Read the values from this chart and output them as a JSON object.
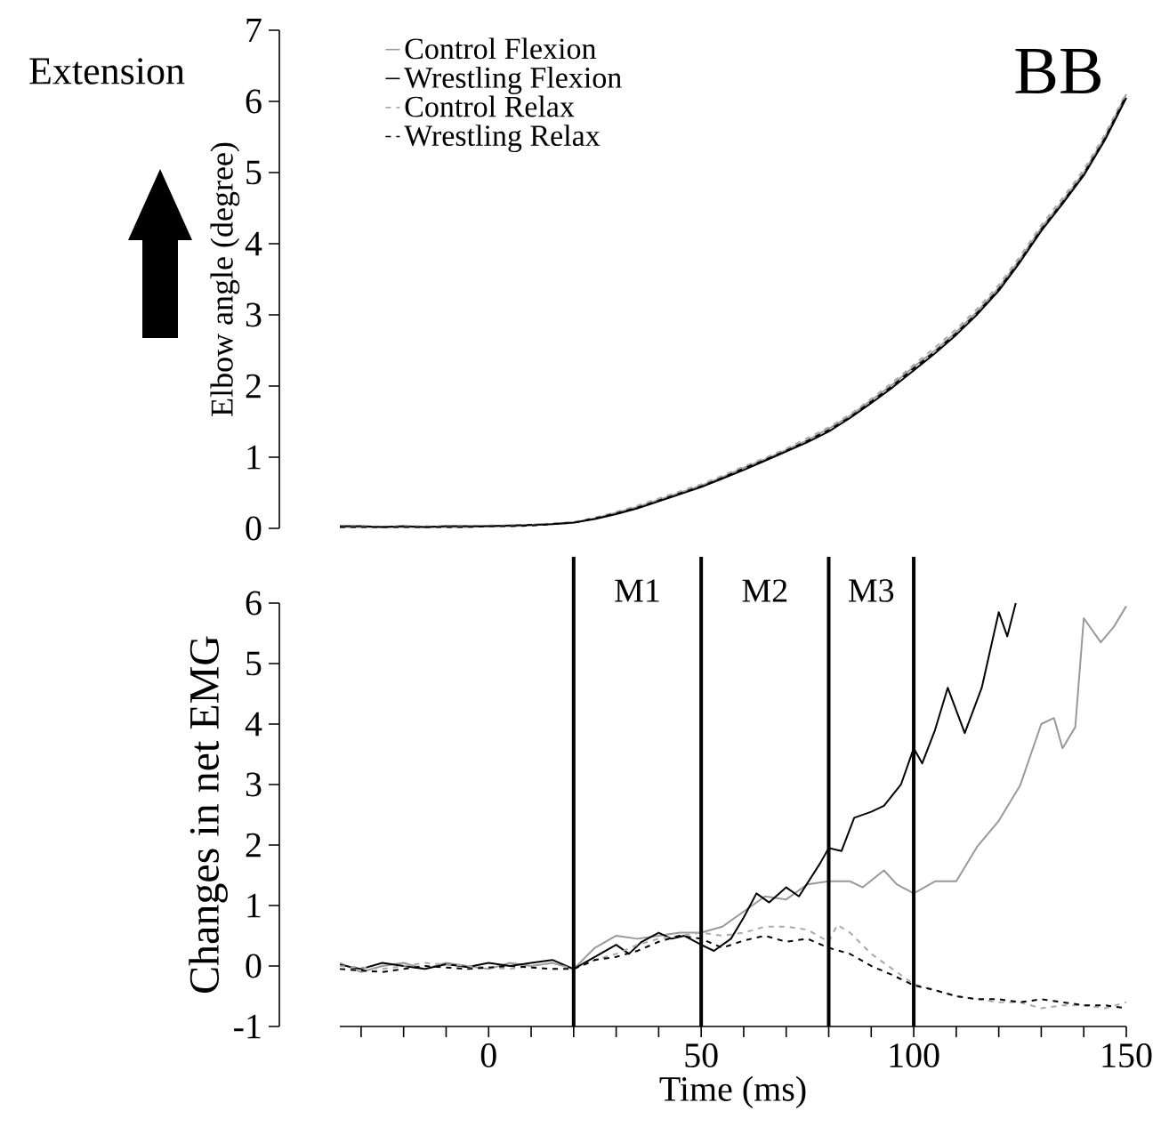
{
  "chart_data": [
    {
      "type": "line",
      "ylabel": "Elbow angle (degree)",
      "annotations": [
        "Extension",
        "BB"
      ],
      "categories": [
        null,
        null,
        null,
        null,
        null,
        null,
        null,
        null,
        null,
        null,
        null,
        null,
        null,
        null,
        null,
        null,
        null,
        null,
        null,
        null,
        null,
        null,
        null,
        null,
        null,
        null,
        null,
        null,
        null,
        null,
        null,
        null,
        null,
        null,
        null,
        null,
        null,
        null
      ],
      "ylim": [
        0,
        7
      ],
      "yticks": [
        0,
        1,
        2,
        3,
        4,
        5,
        6,
        7
      ],
      "tick_labels": "y",
      "legend": "top left",
      "series": [
        {
          "name": "Control Flexion",
          "color": "#999999",
          "line_style": "solid",
          "values": [
            0.02,
            0.02,
            0.02,
            0.02,
            0.02,
            0.02,
            0.02,
            0.03,
            0.03,
            0.04,
            0.06,
            0.08,
            0.14,
            0.22,
            0.3,
            0.4,
            0.5,
            0.6,
            0.72,
            0.85,
            0.97,
            1.1,
            1.24,
            1.4,
            1.58,
            1.8,
            2.02,
            2.27,
            2.5,
            2.76,
            3.05,
            3.38,
            3.78,
            4.22,
            4.6,
            5.0,
            5.5,
            6.1
          ]
        },
        {
          "name": "Wrestling Flexion",
          "color": "#000000",
          "line_style": "solid",
          "values": [
            0.03,
            0.03,
            0.02,
            0.03,
            0.02,
            0.03,
            0.03,
            0.03,
            0.04,
            0.05,
            0.06,
            0.08,
            0.13,
            0.2,
            0.28,
            0.38,
            0.48,
            0.58,
            0.7,
            0.82,
            0.95,
            1.08,
            1.21,
            1.36,
            1.55,
            1.76,
            1.98,
            2.22,
            2.46,
            2.72,
            3.01,
            3.34,
            3.74,
            4.18,
            4.56,
            4.96,
            5.46,
            6.05
          ]
        },
        {
          "name": "Control Relax",
          "color": "#aaaaaa",
          "line_style": "dashed",
          "values": [
            0.02,
            0.03,
            0.02,
            0.03,
            0.03,
            0.02,
            0.03,
            0.04,
            0.04,
            0.05,
            0.07,
            0.09,
            0.15,
            0.23,
            0.32,
            0.42,
            0.52,
            0.62,
            0.74,
            0.87,
            0.99,
            1.12,
            1.27,
            1.42,
            1.6,
            1.82,
            2.05,
            2.3,
            2.54,
            2.8,
            3.09,
            3.42,
            3.82,
            4.26,
            4.64,
            5.04,
            5.54,
            6.12
          ]
        },
        {
          "name": "Wrestling Relax",
          "color": "#000000",
          "line_style": "dashed",
          "values": [
            0.02,
            0.02,
            0.02,
            0.02,
            0.02,
            0.02,
            0.02,
            0.03,
            0.03,
            0.04,
            0.06,
            0.08,
            0.14,
            0.21,
            0.29,
            0.39,
            0.49,
            0.59,
            0.71,
            0.84,
            0.96,
            1.09,
            1.23,
            1.38,
            1.56,
            1.78,
            2.0,
            2.25,
            2.48,
            2.74,
            3.03,
            3.36,
            3.76,
            4.2,
            4.58,
            4.98,
            5.48,
            6.08
          ]
        }
      ]
    },
    {
      "type": "line",
      "xlabel": "Time (ms)",
      "ylabel": "Changes in net EMG",
      "xlim": [
        -35,
        150
      ],
      "ylim": [
        -1,
        6
      ],
      "yticks": [
        -1,
        0,
        1,
        2,
        3,
        4,
        5,
        6
      ],
      "xticks": [
        {
          "value": -30,
          "label": null
        },
        {
          "value": -20,
          "label": null
        },
        {
          "value": -10,
          "label": null
        },
        0,
        {
          "value": 10,
          "label": null
        },
        {
          "value": 20,
          "label": null
        },
        {
          "value": 30,
          "label": null
        },
        {
          "value": 40,
          "label": null
        },
        50,
        {
          "value": 60,
          "label": null
        },
        {
          "value": 70,
          "label": null
        },
        {
          "value": 80,
          "label": null
        },
        {
          "value": 90,
          "label": null
        },
        100,
        {
          "value": 110,
          "label": null
        },
        {
          "value": 120,
          "label": null
        },
        {
          "value": 130,
          "label": null
        },
        {
          "value": 140,
          "label": null
        },
        150
      ],
      "ref_lines": [
        {
          "axis": "x",
          "value": 20,
          "color": "#000000"
        },
        {
          "axis": "x",
          "value": 50,
          "color": "#000000"
        },
        {
          "axis": "x",
          "value": 80,
          "color": "#000000"
        },
        {
          "axis": "x",
          "value": 100,
          "color": "#000000"
        }
      ],
      "annotations": [
        "M1",
        "M2",
        "M3"
      ],
      "series": [
        {
          "color": "#999999",
          "line_style": "solid",
          "x": [
            -35,
            -30,
            -25,
            -20,
            -15,
            -10,
            -5,
            0,
            5,
            10,
            15,
            20,
            25,
            30,
            35,
            40,
            45,
            50,
            55,
            60,
            65,
            70,
            75,
            80,
            85,
            88,
            93,
            96,
            100,
            105,
            110,
            115,
            120,
            125,
            130,
            133,
            135,
            138,
            140,
            144,
            147,
            150
          ],
          "values": [
            0.05,
            -0.1,
            0.0,
            0.05,
            -0.05,
            0.05,
            0.0,
            -0.05,
            0.05,
            0.0,
            0.05,
            -0.05,
            0.3,
            0.5,
            0.45,
            0.5,
            0.55,
            0.55,
            0.65,
            0.9,
            1.15,
            1.1,
            1.35,
            1.4,
            1.4,
            1.3,
            1.58,
            1.35,
            1.2,
            1.4,
            1.4,
            1.98,
            2.4,
            2.98,
            4.0,
            4.1,
            3.6,
            3.95,
            5.75,
            5.35,
            5.6,
            5.95
          ]
        },
        {
          "color": "#000000",
          "line_style": "solid",
          "x": [
            -35,
            -30,
            -25,
            -20,
            -15,
            -10,
            -5,
            0,
            5,
            10,
            15,
            20,
            25,
            30,
            33,
            36,
            40,
            43,
            46,
            50,
            53,
            57,
            60,
            63,
            66,
            70,
            73,
            78,
            80,
            83,
            86,
            90,
            93,
            97,
            100,
            102,
            105,
            108,
            112,
            116,
            120,
            122,
            124
          ],
          "values": [
            0.02,
            -0.05,
            0.05,
            0.0,
            -0.05,
            0.03,
            -0.02,
            0.05,
            0.0,
            0.05,
            0.1,
            -0.05,
            0.15,
            0.35,
            0.2,
            0.4,
            0.55,
            0.45,
            0.5,
            0.35,
            0.25,
            0.45,
            0.8,
            1.2,
            1.05,
            1.3,
            1.15,
            1.7,
            1.95,
            1.9,
            2.45,
            2.55,
            2.65,
            3.0,
            3.6,
            3.35,
            3.9,
            4.6,
            3.85,
            4.6,
            5.85,
            5.45,
            6.0
          ]
        },
        {
          "color": "#aaaaaa",
          "line_style": "dashed",
          "x": [
            -35,
            -25,
            -15,
            -5,
            5,
            15,
            20,
            25,
            30,
            35,
            40,
            45,
            50,
            55,
            60,
            65,
            70,
            75,
            80,
            82,
            85,
            90,
            95,
            100,
            105,
            110,
            115,
            120,
            125,
            130,
            135,
            140,
            145,
            150
          ],
          "values": [
            0.0,
            -0.05,
            0.05,
            0.0,
            -0.05,
            0.05,
            -0.05,
            0.1,
            0.2,
            0.35,
            0.45,
            0.5,
            0.55,
            0.5,
            0.55,
            0.65,
            0.65,
            0.6,
            0.4,
            0.68,
            0.55,
            0.2,
            -0.05,
            -0.3,
            -0.4,
            -0.5,
            -0.55,
            -0.6,
            -0.6,
            -0.7,
            -0.65,
            -0.65,
            -0.7,
            -0.6
          ]
        },
        {
          "color": "#000000",
          "line_style": "dashed",
          "x": [
            -35,
            -25,
            -15,
            -5,
            5,
            15,
            20,
            25,
            30,
            35,
            40,
            45,
            50,
            55,
            60,
            65,
            70,
            75,
            80,
            85,
            90,
            95,
            100,
            105,
            110,
            115,
            120,
            125,
            130,
            135,
            140,
            145,
            150
          ],
          "values": [
            -0.05,
            -0.1,
            0.0,
            -0.05,
            0.0,
            -0.05,
            -0.05,
            0.1,
            0.15,
            0.25,
            0.4,
            0.5,
            0.45,
            0.3,
            0.42,
            0.5,
            0.4,
            0.45,
            0.3,
            0.2,
            0.0,
            -0.15,
            -0.32,
            -0.4,
            -0.5,
            -0.55,
            -0.55,
            -0.6,
            -0.55,
            -0.6,
            -0.65,
            -0.65,
            -0.7
          ]
        }
      ]
    }
  ]
}
